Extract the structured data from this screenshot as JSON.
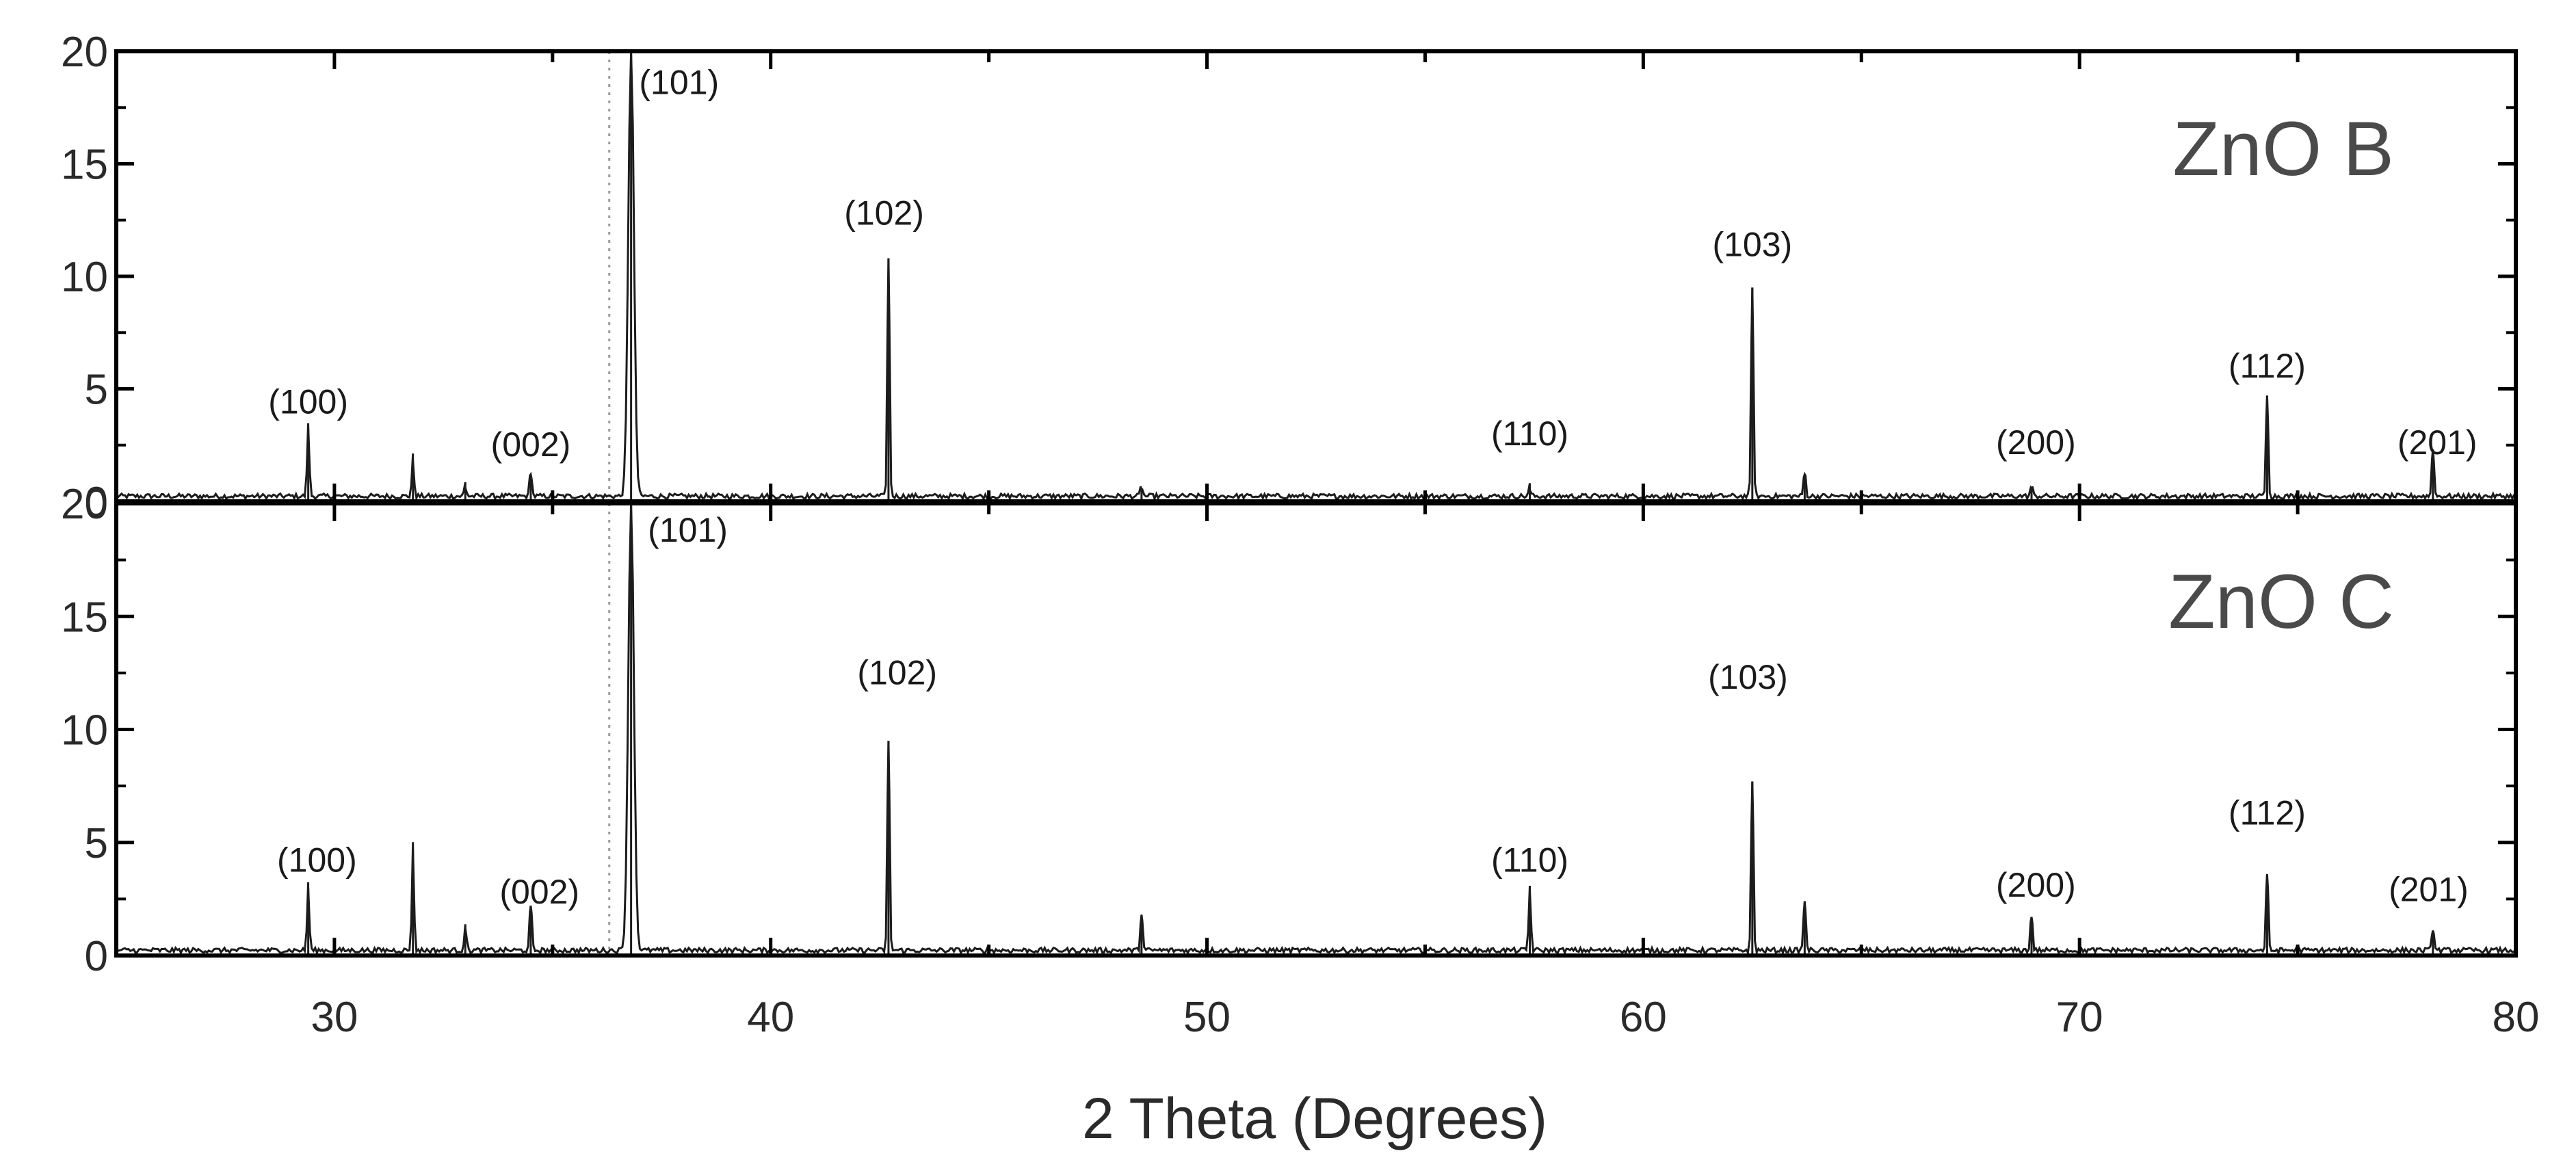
{
  "chart_data": {
    "type": "line",
    "xlabel": "2 Theta (Degrees)",
    "ylabel": "",
    "xlim": [
      25,
      80
    ],
    "x_ticks": [
      "30",
      "40",
      "50",
      "60",
      "70",
      "80"
    ],
    "grid": false,
    "reference_line_x": 36.3,
    "panels": [
      {
        "name": "ZnO B",
        "ylim": [
          0,
          20
        ],
        "y_ticks": [
          "0",
          "5",
          "10",
          "15",
          "20"
        ],
        "peaks": [
          {
            "x": 29.4,
            "y": 3.3
          },
          {
            "x": 31.8,
            "y": 1.8
          },
          {
            "x": 33.0,
            "y": 0.6
          },
          {
            "x": 34.5,
            "y": 1.2
          },
          {
            "x": 36.8,
            "y": 20
          },
          {
            "x": 42.7,
            "y": 10.8
          },
          {
            "x": 48.5,
            "y": 0.5
          },
          {
            "x": 57.4,
            "y": 0.5
          },
          {
            "x": 62.5,
            "y": 9.5
          },
          {
            "x": 63.7,
            "y": 1.2
          },
          {
            "x": 68.9,
            "y": 0.5
          },
          {
            "x": 74.3,
            "y": 4.7
          },
          {
            "x": 78.1,
            "y": 2.3
          }
        ],
        "peak_labels": [
          {
            "text": "(100)",
            "x": 29.4,
            "y": 3.9
          },
          {
            "text": "(002)",
            "x": 34.5,
            "y": 2.0
          },
          {
            "text": "(101)",
            "x": 37.9,
            "y": 18.1
          },
          {
            "text": "(102)",
            "x": 42.6,
            "y": 12.3
          },
          {
            "text": "(110)",
            "x": 57.4,
            "y": 2.5
          },
          {
            "text": "(103)",
            "x": 62.5,
            "y": 10.9
          },
          {
            "text": "(200)",
            "x": 69.0,
            "y": 2.1
          },
          {
            "text": "(112)",
            "x": 74.3,
            "y": 5.5
          },
          {
            "text": "(201)",
            "x": 78.2,
            "y": 2.1
          }
        ]
      },
      {
        "name": "ZnO C",
        "ylim": [
          0,
          20
        ],
        "y_ticks": [
          "0",
          "5",
          "10",
          "15",
          "20"
        ],
        "peaks": [
          {
            "x": 29.4,
            "y": 3.0
          },
          {
            "x": 31.8,
            "y": 4.7
          },
          {
            "x": 33.0,
            "y": 1.2
          },
          {
            "x": 34.5,
            "y": 2.2
          },
          {
            "x": 36.8,
            "y": 20
          },
          {
            "x": 42.7,
            "y": 9.5
          },
          {
            "x": 48.5,
            "y": 1.8
          },
          {
            "x": 57.4,
            "y": 2.9
          },
          {
            "x": 62.5,
            "y": 7.7
          },
          {
            "x": 63.7,
            "y": 2.4
          },
          {
            "x": 68.9,
            "y": 1.7
          },
          {
            "x": 74.3,
            "y": 3.6
          },
          {
            "x": 78.1,
            "y": 1.1
          }
        ],
        "peak_labels": [
          {
            "text": "(100)",
            "x": 29.6,
            "y": 3.7
          },
          {
            "text": "(002)",
            "x": 34.7,
            "y": 2.3
          },
          {
            "text": "(101)",
            "x": 38.1,
            "y": 18.3
          },
          {
            "text": "(102)",
            "x": 42.9,
            "y": 12.0
          },
          {
            "text": "(110)",
            "x": 57.4,
            "y": 3.7
          },
          {
            "text": "(103)",
            "x": 62.4,
            "y": 11.8
          },
          {
            "text": "(200)",
            "x": 69.0,
            "y": 2.6
          },
          {
            "text": "(112)",
            "x": 74.3,
            "y": 5.8
          },
          {
            "text": "(201)",
            "x": 78.0,
            "y": 2.4
          }
        ]
      }
    ]
  },
  "colors": {
    "trace": "#1c1c1c",
    "axis": "#000000",
    "panel_label": "#4a4a4a",
    "reference_line": "#9a9a9a"
  }
}
